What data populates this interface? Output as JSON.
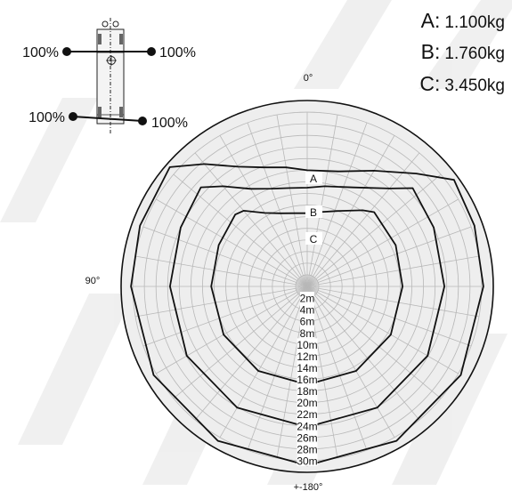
{
  "rigging": {
    "top_left_label": "100%",
    "top_right_label": "100%",
    "bottom_left_label": "100%",
    "bottom_right_label": "100%"
  },
  "weights": [
    {
      "letter": "A:",
      "value": "1.100kg"
    },
    {
      "letter": "B:",
      "value": "1.760kg"
    },
    {
      "letter": "C:",
      "value": "3.450kg"
    }
  ],
  "angle_labels": {
    "top": "0°",
    "left": "90°",
    "bottom": "+-180°"
  },
  "chart_data": {
    "type": "polar",
    "radial_unit": "m",
    "radial_range": [
      0,
      32
    ],
    "radial_tick_labels": [
      "2m",
      "4m",
      "6m",
      "8m",
      "10m",
      "12m",
      "14m",
      "16m",
      "18m",
      "20m",
      "22m",
      "24m",
      "26m",
      "28m",
      "30m"
    ],
    "series": [
      {
        "name": "A",
        "points": [
          {
            "angle": 0,
            "r": 20.0
          },
          {
            "angle": 10,
            "r": 20.8
          },
          {
            "angle": 20,
            "r": 21.8
          },
          {
            "angle": 30,
            "r": 23.8
          },
          {
            "angle": 40,
            "r": 27.5
          },
          {
            "angle": 49,
            "r": 31.3
          },
          {
            "angle": 70,
            "r": 30.6
          },
          {
            "angle": 90,
            "r": 30.3
          },
          {
            "angle": 120,
            "r": 30.5
          },
          {
            "angle": 150,
            "r": 30.7
          },
          {
            "angle": 180,
            "r": 30.8
          },
          {
            "angle": 210,
            "r": 30.7
          },
          {
            "angle": 240,
            "r": 30.5
          },
          {
            "angle": 270,
            "r": 30.3
          },
          {
            "angle": 290,
            "r": 30.6
          },
          {
            "angle": 306,
            "r": 31.2
          },
          {
            "angle": 316,
            "r": 27.0
          },
          {
            "angle": 330,
            "r": 23.0
          },
          {
            "angle": 345,
            "r": 20.5
          }
        ]
      },
      {
        "name": "B",
        "points": [
          {
            "angle": 0,
            "r": 17.0
          },
          {
            "angle": 10,
            "r": 17.2
          },
          {
            "angle": 20,
            "r": 17.9
          },
          {
            "angle": 30,
            "r": 19.4
          },
          {
            "angle": 40,
            "r": 22.5
          },
          {
            "angle": 47,
            "r": 25.0
          },
          {
            "angle": 65,
            "r": 24.0
          },
          {
            "angle": 90,
            "r": 23.6
          },
          {
            "angle": 120,
            "r": 23.9
          },
          {
            "angle": 150,
            "r": 24.1
          },
          {
            "angle": 180,
            "r": 24.2
          },
          {
            "angle": 210,
            "r": 24.1
          },
          {
            "angle": 240,
            "r": 23.9
          },
          {
            "angle": 270,
            "r": 23.6
          },
          {
            "angle": 295,
            "r": 24.0
          },
          {
            "angle": 313,
            "r": 24.8
          },
          {
            "angle": 320,
            "r": 22.0
          },
          {
            "angle": 335,
            "r": 18.8
          },
          {
            "angle": 350,
            "r": 17.5
          }
        ]
      },
      {
        "name": "C",
        "points": [
          {
            "angle": 0,
            "r": 12.6
          },
          {
            "angle": 10,
            "r": 12.8
          },
          {
            "angle": 20,
            "r": 13.4
          },
          {
            "angle": 30,
            "r": 14.6
          },
          {
            "angle": 40,
            "r": 17.0
          },
          {
            "angle": 45,
            "r": 17.5
          },
          {
            "angle": 65,
            "r": 16.8
          },
          {
            "angle": 90,
            "r": 16.5
          },
          {
            "angle": 120,
            "r": 16.6
          },
          {
            "angle": 150,
            "r": 16.8
          },
          {
            "angle": 180,
            "r": 16.9
          },
          {
            "angle": 210,
            "r": 16.8
          },
          {
            "angle": 240,
            "r": 16.6
          },
          {
            "angle": 270,
            "r": 16.4
          },
          {
            "angle": 295,
            "r": 16.8
          },
          {
            "angle": 318,
            "r": 17.2
          },
          {
            "angle": 324,
            "r": 16.2
          },
          {
            "angle": 338,
            "r": 14.0
          },
          {
            "angle": 350,
            "r": 13.0
          }
        ]
      }
    ]
  }
}
